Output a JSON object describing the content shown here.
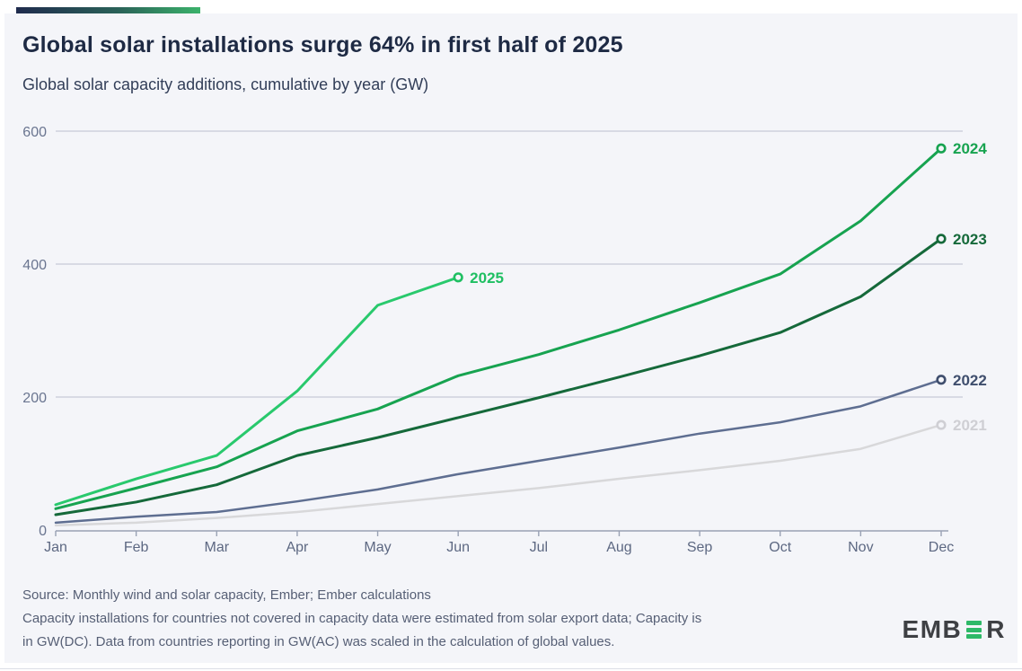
{
  "header": {
    "title": "Global solar installations surge 64% in first half of 2025",
    "subtitle": "Global solar capacity additions, cumulative by year (GW)"
  },
  "footer": {
    "lines": [
      "Source: Monthly wind and solar capacity, Ember; Ember calculations",
      "Capacity installations for countries not covered in capacity data were estimated from solar export data; Capacity is",
      "in GW(DC). Data from countries reporting in GW(AC) was scaled in the calculation of global values."
    ]
  },
  "logo": {
    "name": "EMBER",
    "prefix": "EMB",
    "suffix": "R",
    "green": "#2eb968",
    "charcoal": "#3e4044"
  },
  "colors": {
    "accent_gradient_start": "#1f2b4d",
    "accent_gradient_end": "#3bb26b",
    "panel_background": "#f4f5f9",
    "title_text": "#1e2a44",
    "grid_line": "#c6cbd8",
    "axis_line": "#99a1b4",
    "axis_label": "#5d6882"
  },
  "chart_data": {
    "type": "line",
    "title": "Global solar installations surge 64% in first half of 2025",
    "subtitle": "Global solar capacity additions, cumulative by year (GW)",
    "unit": "GW",
    "categories": [
      "Jan",
      "Feb",
      "Mar",
      "Apr",
      "May",
      "Jun",
      "Jul",
      "Aug",
      "Sep",
      "Oct",
      "Nov",
      "Dec"
    ],
    "ylim": [
      0,
      600
    ],
    "yticks": [
      0,
      200,
      400,
      600
    ],
    "grid": true,
    "legend_position": "end-of-line-labels",
    "series": [
      {
        "name": "2021",
        "color": "#d8d8da",
        "label_color": "#cfcfd4",
        "stroke_width": 2.5,
        "values": [
          7,
          11,
          18,
          27,
          39,
          51,
          63,
          77,
          90,
          104,
          122,
          158
        ]
      },
      {
        "name": "2022",
        "color": "#5e6e91",
        "label_color": "#3f4e6d",
        "stroke_width": 2.5,
        "values": [
          11,
          20,
          27,
          43,
          61,
          84,
          104,
          124,
          145,
          162,
          186,
          226
        ]
      },
      {
        "name": "2023",
        "color": "#15693a",
        "label_color": "#15693a",
        "stroke_width": 3,
        "values": [
          23,
          42,
          68,
          112,
          139,
          169,
          199,
          230,
          262,
          297,
          351,
          438
        ]
      },
      {
        "name": "2024",
        "color": "#17a350",
        "label_color": "#17a350",
        "stroke_width": 3,
        "values": [
          32,
          63,
          95,
          149,
          182,
          232,
          264,
          301,
          342,
          385,
          465,
          574
        ]
      },
      {
        "name": "2025",
        "color": "#29c96d",
        "label_color": "#1fbf62",
        "stroke_width": 3,
        "values": [
          38,
          77,
          112,
          209,
          338,
          380
        ]
      }
    ]
  }
}
